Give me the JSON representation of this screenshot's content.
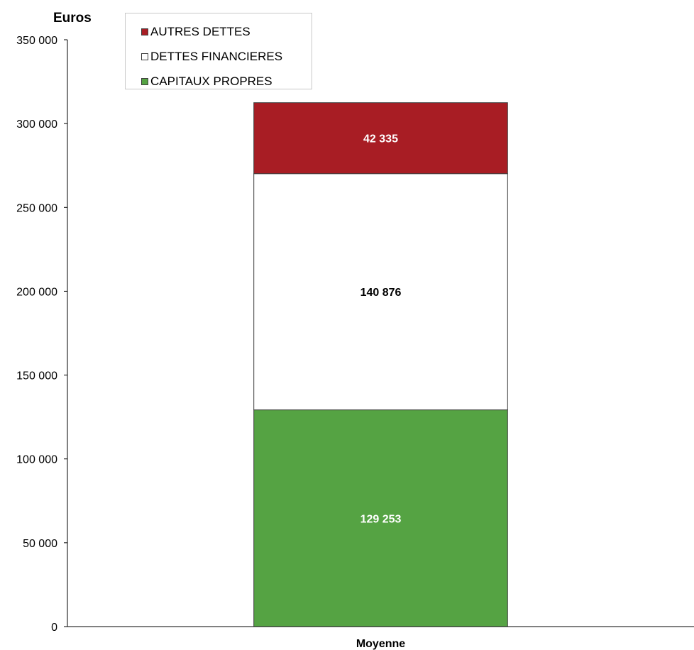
{
  "chart_data": {
    "type": "bar",
    "stacked": true,
    "ylabel": "Euros",
    "xlabel": "",
    "categories": [
      "Moyenne"
    ],
    "ylim": [
      0,
      350000
    ],
    "yticks": [
      0,
      50000,
      100000,
      150000,
      200000,
      250000,
      300000,
      350000
    ],
    "ytick_labels": [
      "0",
      "50 000",
      "100 000",
      "150 000",
      "200 000",
      "250 000",
      "300 000",
      "350 000"
    ],
    "grid": false,
    "legend_position": "top-left",
    "series": [
      {
        "name": "CAPITAUX PROPRES",
        "values": [
          129253
        ],
        "label": "129 253",
        "color": "#55a343",
        "label_color": "#ffffff"
      },
      {
        "name": "DETTES FINANCIERES",
        "values": [
          140876
        ],
        "label": "140 876",
        "color": "#ffffff",
        "label_color": "#000000"
      },
      {
        "name": "AUTRES DETTES",
        "values": [
          42335
        ],
        "label": "42 335",
        "color": "#a81d24",
        "label_color": "#ffffff"
      }
    ]
  },
  "legend": {
    "items": [
      {
        "name": "AUTRES DETTES",
        "color": "#a81d24"
      },
      {
        "name": "DETTES FINANCIERES",
        "color": "#ffffff"
      },
      {
        "name": "CAPITAUX PROPRES",
        "color": "#55a343"
      }
    ]
  }
}
